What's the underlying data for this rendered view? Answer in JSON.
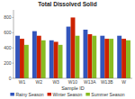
{
  "chart_data": {
    "type": "bar",
    "title": "Total Dissolved Solid",
    "xlabel": "Sample ID",
    "categories": [
      "W1",
      "W2",
      "W3",
      "W10",
      "W13A",
      "W13B",
      "W"
    ],
    "series": [
      {
        "name": "Rainy Season",
        "color": "#3355bb",
        "values": [
          560,
          620,
          500,
          680,
          640,
          560,
          560
        ]
      },
      {
        "name": "Winter Season",
        "color": "#cc2200",
        "values": [
          520,
          560,
          480,
          800,
          580,
          520,
          520
        ]
      },
      {
        "name": "Summer Season",
        "color": "#88bb22",
        "values": [
          440,
          500,
          440,
          560,
          560,
          520,
          500
        ]
      }
    ],
    "ylim": [
      0,
      900
    ],
    "yticks": [
      0,
      200,
      400,
      600,
      800
    ],
    "grid": false,
    "legend": "bottom"
  }
}
